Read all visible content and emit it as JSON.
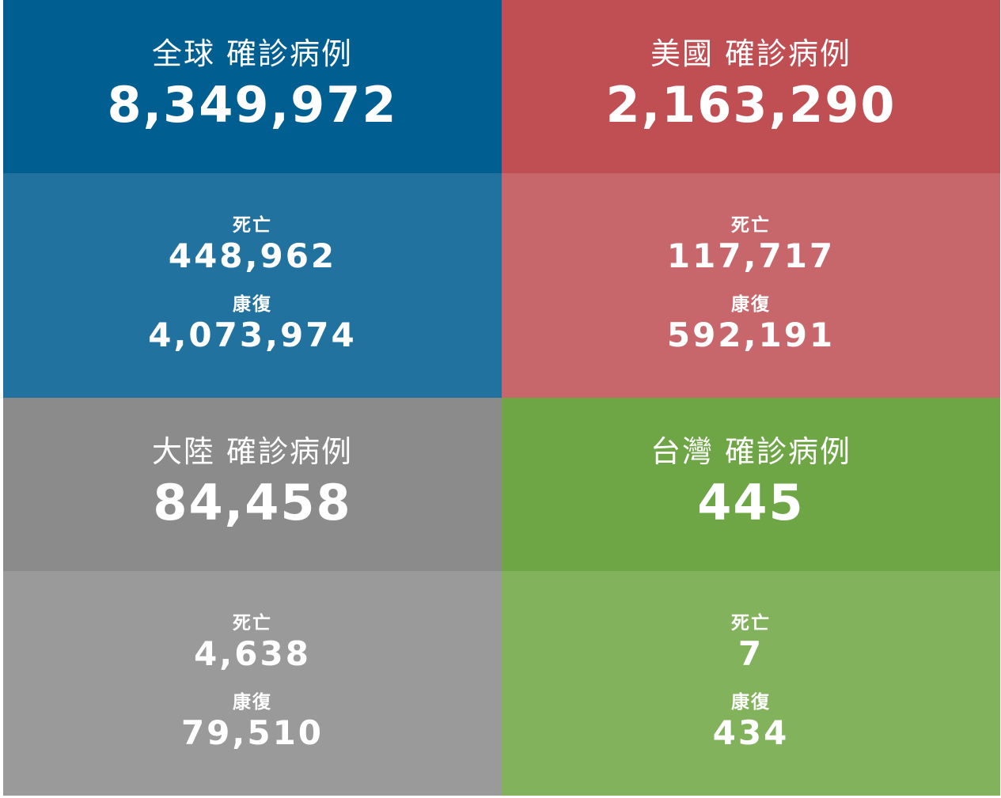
{
  "colors": {
    "global_top": "#005e91",
    "global_bottom": "#2272a0",
    "usa_top": "#c04f54",
    "usa_bottom": "#c8676b",
    "china_top": "#8b8b8b",
    "china_bottom": "#9a9a9a",
    "taiwan_top": "#6ea545",
    "taiwan_bottom": "#82b35c"
  },
  "panels": [
    {
      "region": "全球",
      "title": "確診病例",
      "confirmed": "8,349,972",
      "deaths_label": "死亡",
      "deaths": "448,962",
      "recovered_label": "康復",
      "recovered": "4,073,974"
    },
    {
      "region": "美國",
      "title": "確診病例",
      "confirmed": "2,163,290",
      "deaths_label": "死亡",
      "deaths": "117,717",
      "recovered_label": "康復",
      "recovered": "592,191"
    },
    {
      "region": "大陸",
      "title": "確診病例",
      "confirmed": "84,458",
      "deaths_label": "死亡",
      "deaths": "4,638",
      "recovered_label": "康復",
      "recovered": "79,510"
    },
    {
      "region": "台灣",
      "title": "確診病例",
      "confirmed": "445",
      "deaths_label": "死亡",
      "deaths": "7",
      "recovered_label": "康復",
      "recovered": "434"
    }
  ]
}
